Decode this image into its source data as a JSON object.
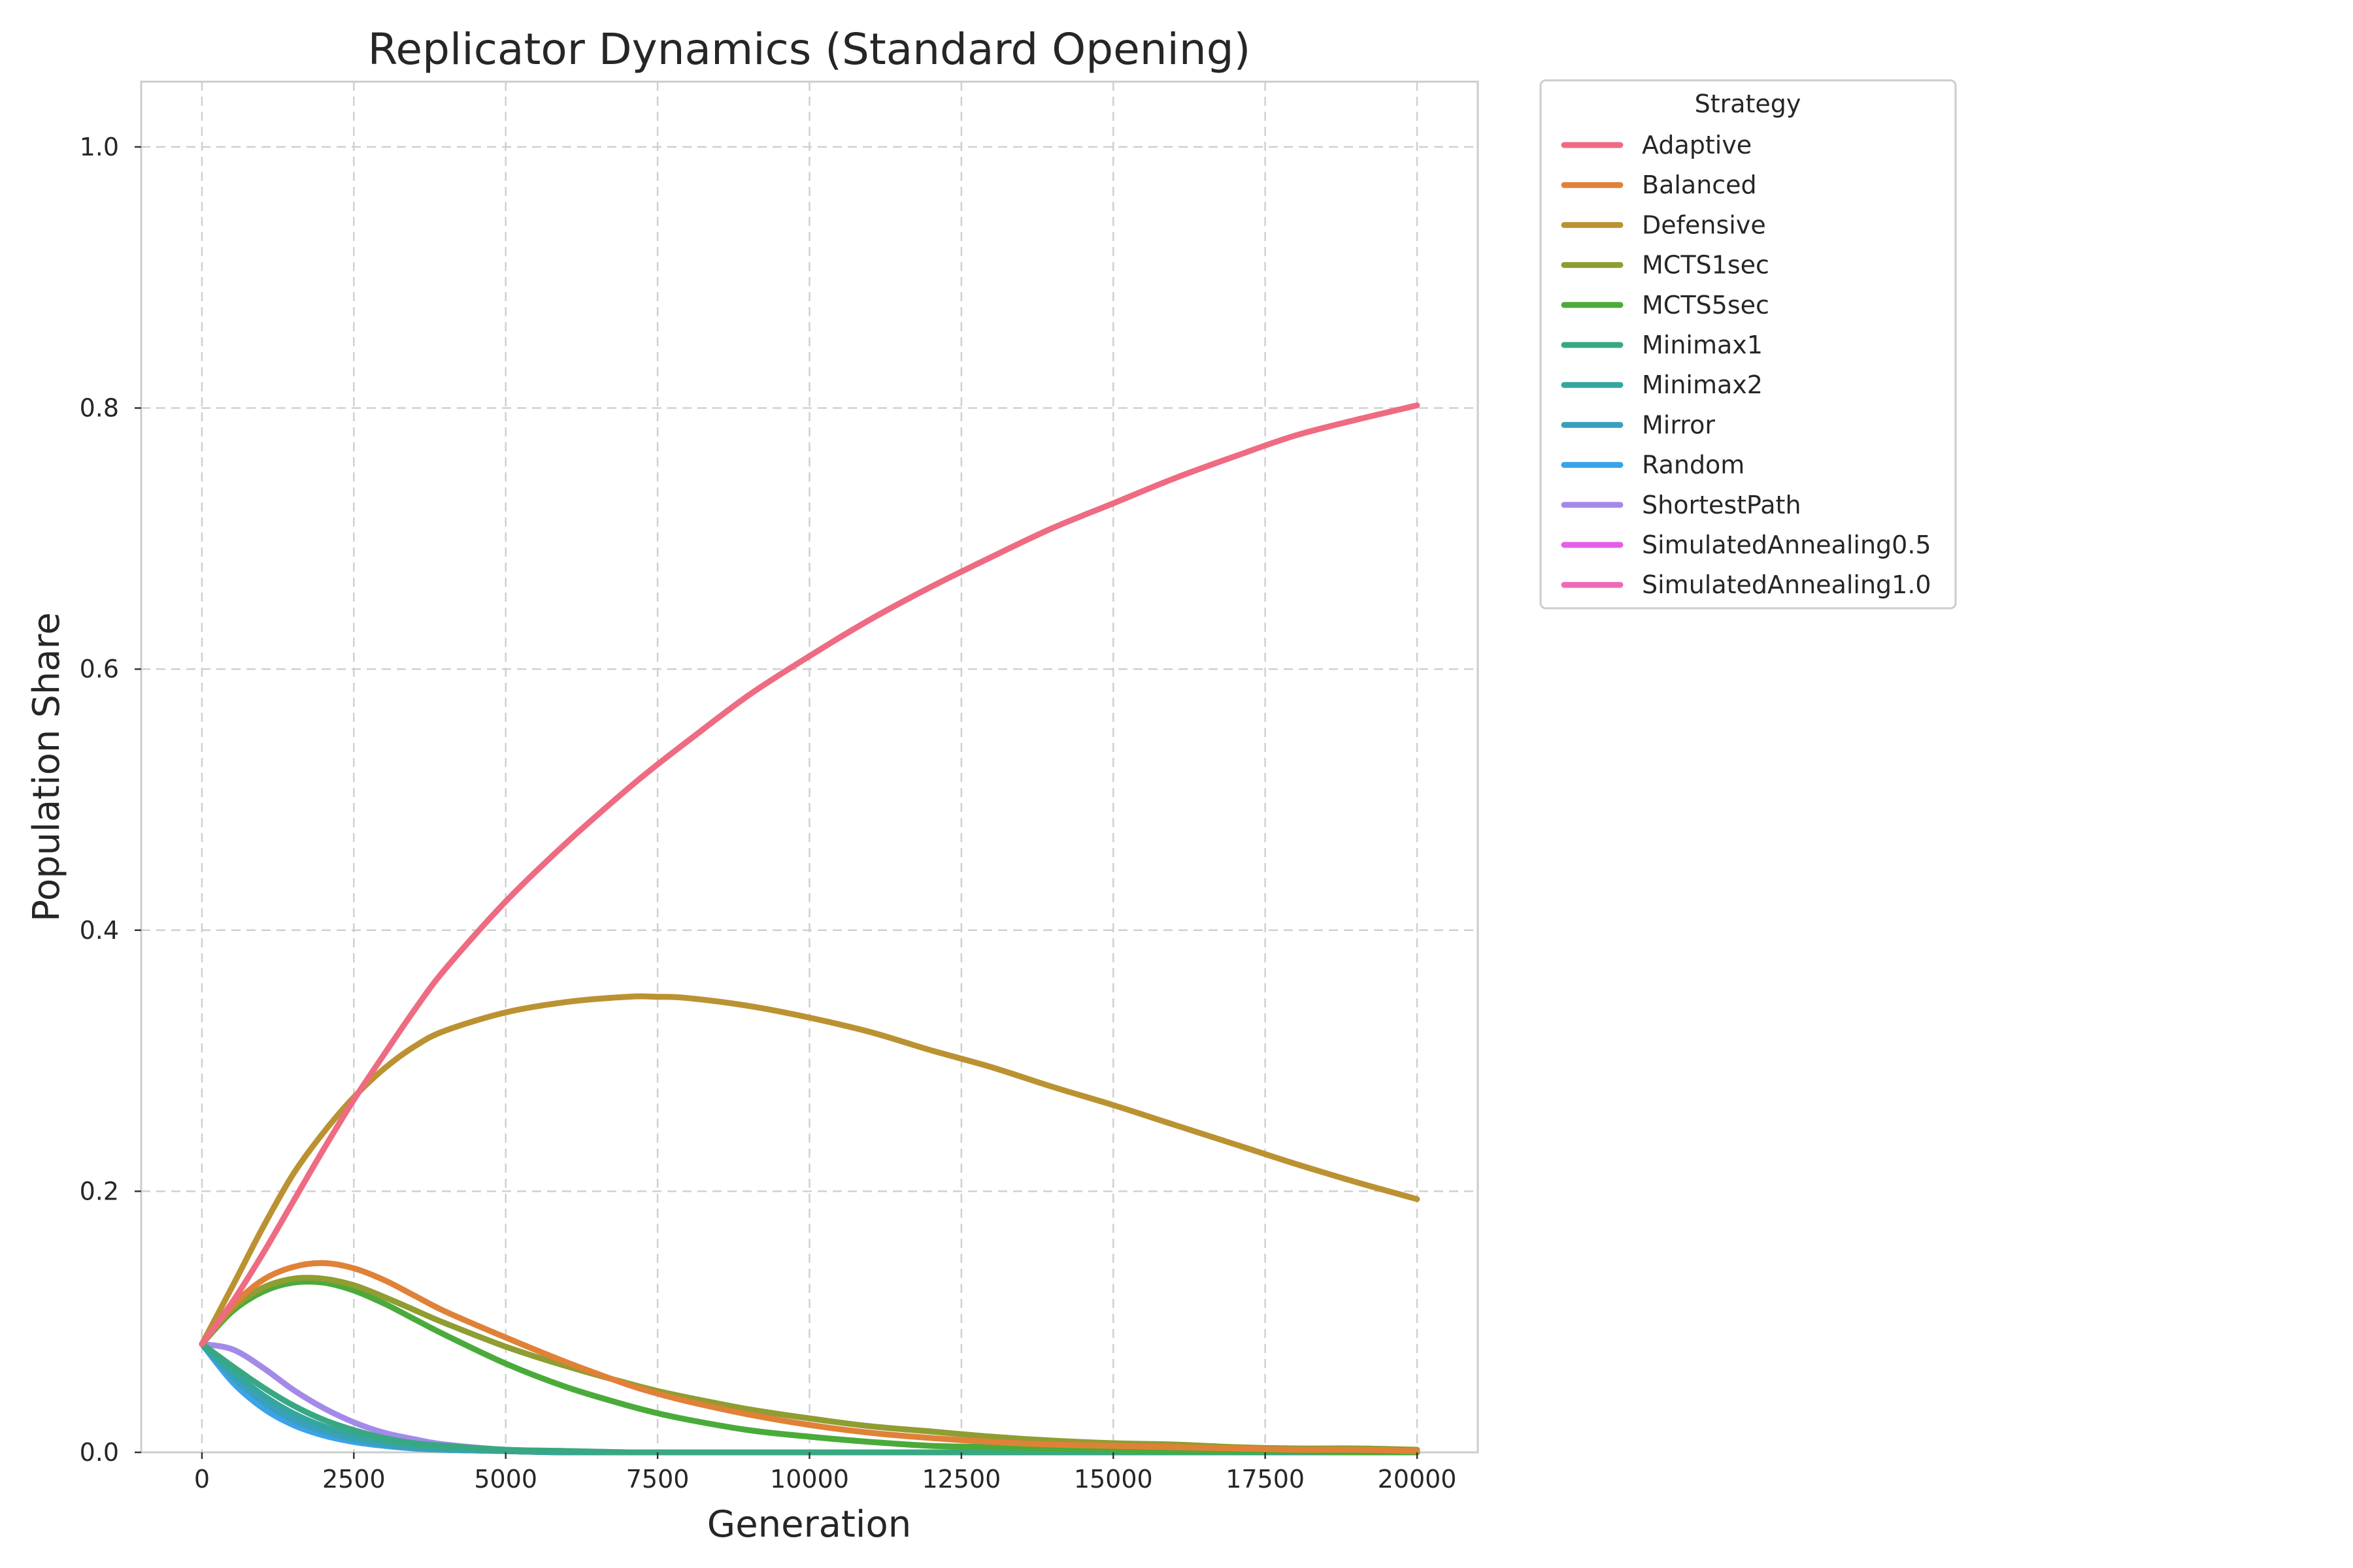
{
  "chart_data": {
    "type": "line",
    "title": "Replicator Dynamics (Standard Opening)",
    "xlabel": "Generation",
    "ylabel": "Population Share",
    "xlim": [
      -1000,
      21000
    ],
    "ylim": [
      0,
      1.05
    ],
    "xticks": [
      0,
      2500,
      5000,
      7500,
      10000,
      12500,
      15000,
      17500,
      20000
    ],
    "yticks": [
      0.0,
      0.2,
      0.4,
      0.6,
      0.8,
      1.0
    ],
    "xtick_labels": [
      "0",
      "2500",
      "5000",
      "7500",
      "10000",
      "12500",
      "15000",
      "17500",
      "20000"
    ],
    "ytick_labels": [
      "0.0",
      "0.2",
      "0.4",
      "0.6",
      "0.8",
      "1.0"
    ],
    "grid": true,
    "legend": {
      "title": "Strategy",
      "placement": "outside-upper-right"
    },
    "x": [
      0,
      500,
      1000,
      1500,
      2000,
      2500,
      3000,
      3500,
      4000,
      5000,
      6000,
      7000,
      7500,
      8000,
      9000,
      10000,
      11000,
      12000,
      13000,
      14000,
      15000,
      16000,
      17000,
      18000,
      19000,
      20000
    ],
    "series": [
      {
        "name": "Adaptive",
        "color": "#ee6b81",
        "values": [
          0.083,
          0.115,
          0.152,
          0.192,
          0.232,
          0.27,
          0.305,
          0.339,
          0.37,
          0.422,
          0.467,
          0.508,
          0.527,
          0.545,
          0.58,
          0.61,
          0.638,
          0.663,
          0.686,
          0.708,
          0.727,
          0.746,
          0.763,
          0.779,
          0.791,
          0.802
        ]
      },
      {
        "name": "Balanced",
        "color": "#e08138",
        "values": [
          0.083,
          0.112,
          0.132,
          0.142,
          0.145,
          0.141,
          0.132,
          0.12,
          0.108,
          0.088,
          0.069,
          0.052,
          0.045,
          0.039,
          0.029,
          0.021,
          0.015,
          0.011,
          0.008,
          0.006,
          0.005,
          0.004,
          0.003,
          0.002,
          0.002,
          0.001
        ]
      },
      {
        "name": "Defensive",
        "color": "#bb9232",
        "values": [
          0.083,
          0.127,
          0.172,
          0.213,
          0.245,
          0.272,
          0.294,
          0.311,
          0.323,
          0.337,
          0.345,
          0.349,
          0.349,
          0.348,
          0.342,
          0.333,
          0.322,
          0.308,
          0.295,
          0.28,
          0.266,
          0.251,
          0.236,
          0.221,
          0.207,
          0.194
        ]
      },
      {
        "name": "MCTS1sec",
        "color": "#8f9d32",
        "values": [
          0.083,
          0.11,
          0.126,
          0.133,
          0.133,
          0.128,
          0.119,
          0.109,
          0.099,
          0.081,
          0.066,
          0.053,
          0.047,
          0.042,
          0.033,
          0.026,
          0.02,
          0.016,
          0.012,
          0.009,
          0.007,
          0.006,
          0.004,
          0.003,
          0.003,
          0.002
        ]
      },
      {
        "name": "MCTS5sec",
        "color": "#4aab3a",
        "values": [
          0.083,
          0.108,
          0.123,
          0.13,
          0.13,
          0.124,
          0.114,
          0.102,
          0.09,
          0.068,
          0.05,
          0.036,
          0.03,
          0.025,
          0.017,
          0.012,
          0.008,
          0.005,
          0.004,
          0.003,
          0.002,
          0.001,
          0.001,
          0.001,
          0.0,
          0.0
        ]
      },
      {
        "name": "Minimax1",
        "color": "#38a882",
        "values": [
          0.083,
          0.066,
          0.05,
          0.036,
          0.025,
          0.017,
          0.011,
          0.007,
          0.005,
          0.002,
          0.001,
          0.0,
          0.0,
          0.0,
          0.0,
          0.0,
          0.0,
          0.0,
          0.0,
          0.0,
          0.0,
          0.0,
          0.0,
          0.0,
          0.0,
          0.0
        ]
      },
      {
        "name": "Minimax2",
        "color": "#35a69f",
        "values": [
          0.083,
          0.062,
          0.044,
          0.03,
          0.02,
          0.013,
          0.008,
          0.005,
          0.003,
          0.001,
          0.0,
          0.0,
          0.0,
          0.0,
          0.0,
          0.0,
          0.0,
          0.0,
          0.0,
          0.0,
          0.0,
          0.0,
          0.0,
          0.0,
          0.0,
          0.0
        ]
      },
      {
        "name": "Mirror",
        "color": "#39a0bd",
        "values": [
          0.083,
          0.058,
          0.039,
          0.025,
          0.016,
          0.01,
          0.006,
          0.003,
          0.002,
          0.001,
          0.0,
          0.0,
          0.0,
          0.0,
          0.0,
          0.0,
          0.0,
          0.0,
          0.0,
          0.0,
          0.0,
          0.0,
          0.0,
          0.0,
          0.0,
          0.0
        ]
      },
      {
        "name": "Random",
        "color": "#3ba3e8",
        "values": [
          0.083,
          0.054,
          0.034,
          0.021,
          0.013,
          0.008,
          0.005,
          0.003,
          0.002,
          0.001,
          0.0,
          0.0,
          0.0,
          0.0,
          0.0,
          0.0,
          0.0,
          0.0,
          0.0,
          0.0,
          0.0,
          0.0,
          0.0,
          0.0,
          0.0,
          0.0
        ]
      },
      {
        "name": "ShortestPath",
        "color": "#a48ae8",
        "values": [
          0.083,
          0.079,
          0.065,
          0.048,
          0.034,
          0.023,
          0.015,
          0.01,
          0.006,
          0.002,
          0.001,
          0.0,
          0.0,
          0.0,
          0.0,
          0.0,
          0.0,
          0.0,
          0.0,
          0.0,
          0.0,
          0.0,
          0.0,
          0.0,
          0.0,
          0.0
        ]
      },
      {
        "name": "SimulatedAnnealing0.5",
        "color": "#e55ee8",
        "values": [
          0.083,
          0.056,
          0.037,
          0.024,
          0.015,
          0.009,
          0.006,
          0.004,
          0.002,
          0.001,
          0.0,
          0.0,
          0.0,
          0.0,
          0.0,
          0.0,
          0.0,
          0.0,
          0.0,
          0.0,
          0.0,
          0.0,
          0.0,
          0.0,
          0.0,
          0.0
        ]
      },
      {
        "name": "SimulatedAnnealing1.0",
        "color": "#f069b8",
        "values": [
          0.083,
          0.06,
          0.041,
          0.027,
          0.017,
          0.011,
          0.007,
          0.004,
          0.003,
          0.001,
          0.0,
          0.0,
          0.0,
          0.0,
          0.0,
          0.0,
          0.0,
          0.0,
          0.0,
          0.0,
          0.0,
          0.0,
          0.0,
          0.0,
          0.0,
          0.0
        ]
      }
    ]
  }
}
